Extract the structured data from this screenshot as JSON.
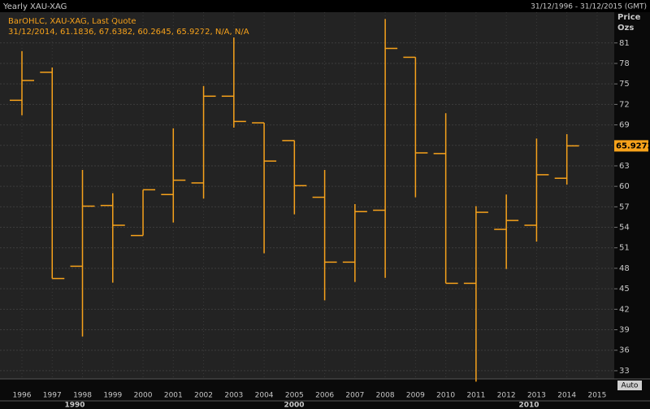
{
  "header": {
    "title": "Yearly XAU-XAG",
    "range": "31/12/1996 - 31/12/2015 (GMT)"
  },
  "chart_data": {
    "type": "ohlc",
    "legend_line1": "BarOHLC, XAU-XAG, Last Quote",
    "legend_line2": "31/12/2014, 61.1836, 67.6382, 60.2645, 65.9272, N/A, N/A",
    "y_title": [
      "Price",
      "Ozs"
    ],
    "categories": [
      "1996",
      "1997",
      "1998",
      "1999",
      "2000",
      "2001",
      "2002",
      "2003",
      "2004",
      "2005",
      "2006",
      "2007",
      "2008",
      "2009",
      "2010",
      "2011",
      "2012",
      "2013",
      "2014",
      "2015"
    ],
    "x_group_labels": [
      "1990",
      "2000",
      "2010"
    ],
    "series": [
      {
        "color": "#f7a21b",
        "open": [
          72.6,
          76.7,
          48.3,
          57.2,
          52.8,
          58.8,
          60.5,
          73.2,
          69.3,
          66.7,
          58.4,
          48.9,
          56.5,
          78.9,
          64.8,
          45.8,
          53.7,
          54.3,
          61.1836,
          null
        ],
        "high": [
          79.8,
          77.4,
          62.4,
          59.0,
          59.5,
          68.5,
          74.7,
          81.8,
          69.3,
          66.7,
          62.4,
          57.4,
          84.5,
          78.9,
          70.7,
          57.1,
          58.8,
          67.0,
          67.6382,
          null
        ],
        "low": [
          70.4,
          46.5,
          38.0,
          45.9,
          52.8,
          54.7,
          58.2,
          68.6,
          50.2,
          55.9,
          43.3,
          46.0,
          46.6,
          58.4,
          45.8,
          31.4,
          47.9,
          51.9,
          60.2645,
          null
        ],
        "close": [
          75.5,
          46.5,
          57.1,
          54.3,
          59.5,
          60.9,
          73.2,
          69.5,
          63.7,
          60.1,
          48.9,
          56.3,
          80.2,
          64.9,
          45.8,
          56.2,
          55.0,
          61.7,
          65.9272,
          null
        ]
      }
    ],
    "last_price": 65.9272,
    "ylim": [
      31.8,
      85.5
    ],
    "yticks": [
      33,
      36,
      39,
      42,
      45,
      48,
      51,
      54,
      57,
      60,
      63,
      66,
      69,
      72,
      75,
      78,
      81
    ],
    "grid": true
  },
  "controls": {
    "auto": "Auto"
  }
}
